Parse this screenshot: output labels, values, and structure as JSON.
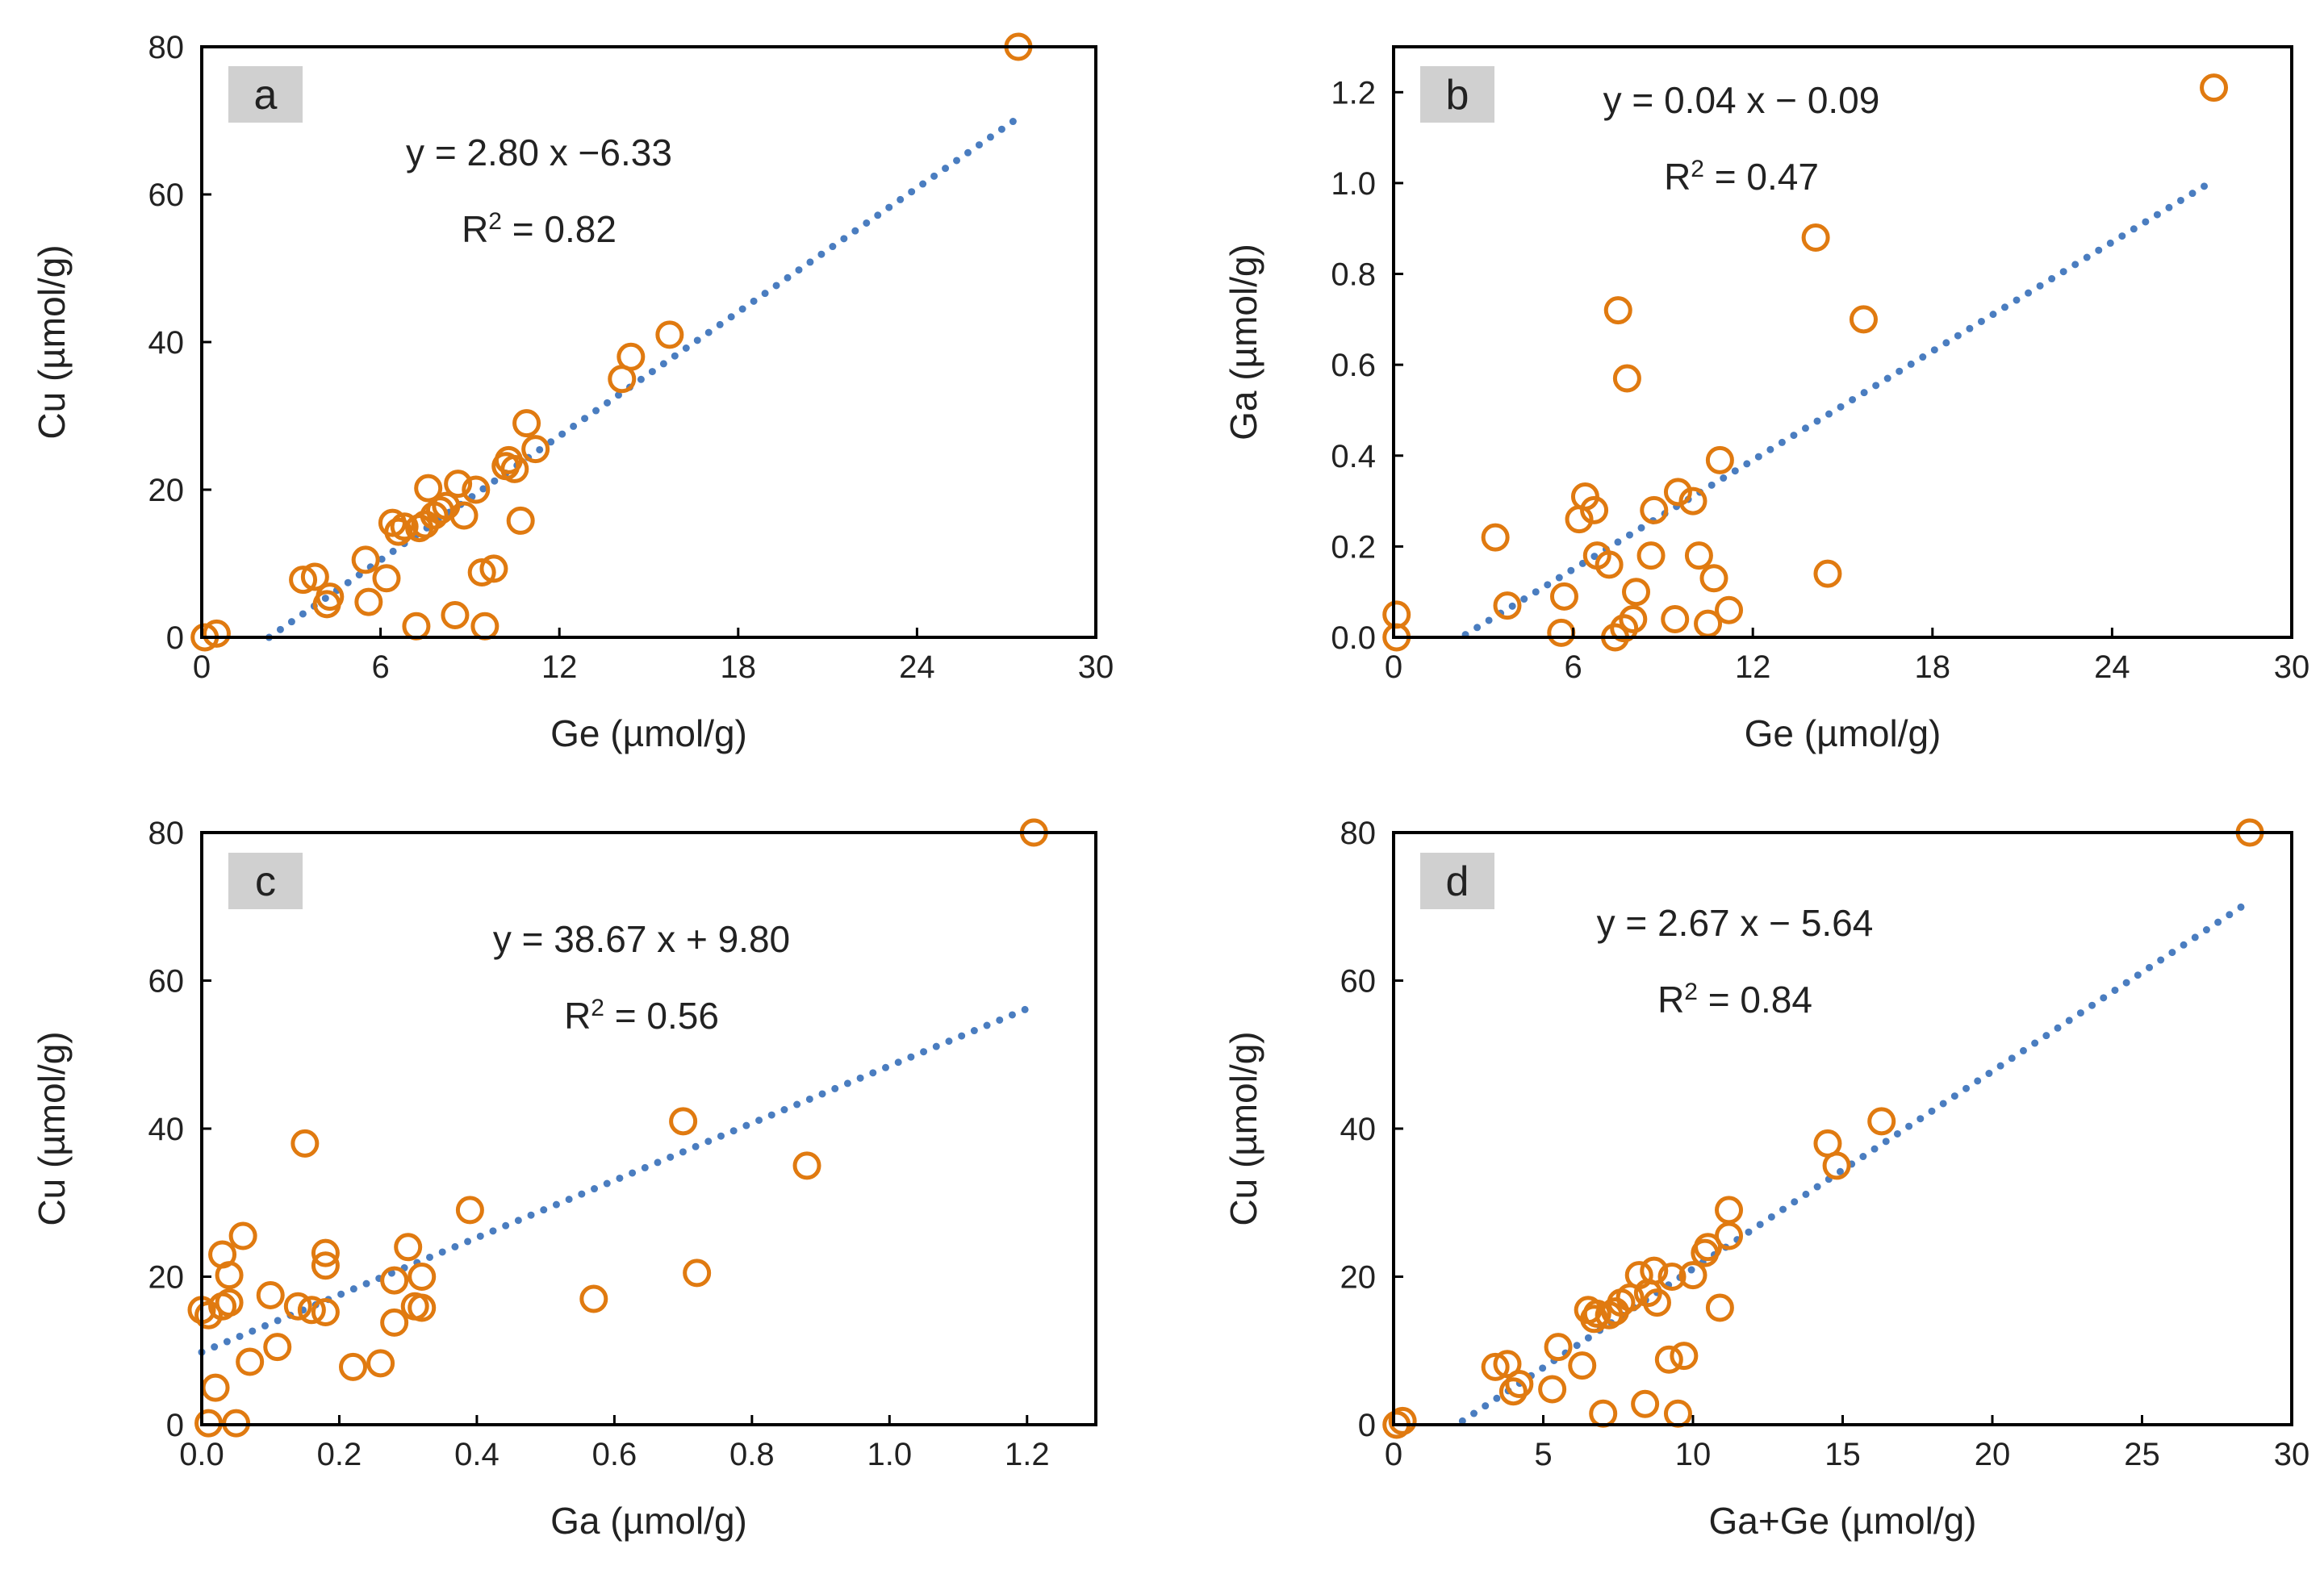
{
  "figure": {
    "colors": {
      "marker": "#E07A10",
      "trend": "#4A7DC0",
      "axis": "#000000",
      "label_box": "#D0D0D0"
    }
  },
  "chart_data": [
    {
      "type": "scatter",
      "panel_label": "a",
      "xlabel": "Ge (µmol/g)",
      "ylabel": "Cu (µmol/g)",
      "xlim": [
        0,
        30
      ],
      "ylim": [
        0,
        80
      ],
      "xticks": [
        0,
        6,
        12,
        18,
        24,
        30
      ],
      "xtick_labels": [
        "0",
        "6",
        "12",
        "18",
        "24",
        "30"
      ],
      "yticks": [
        0,
        20,
        40,
        60,
        80
      ],
      "ytick_labels": [
        "0",
        "20",
        "40",
        "60",
        "80"
      ],
      "equation": "y = 2.80 x −6.33",
      "r2_label": "R",
      "r2_value": " = 0.82",
      "trendline": {
        "slope": 2.8,
        "intercept": -6.33,
        "x_start": 2.26,
        "x_end": 27.4
      },
      "x": [
        0.1,
        0.5,
        3.4,
        3.8,
        4.2,
        4.3,
        5.5,
        5.6,
        6.2,
        6.4,
        6.6,
        6.8,
        7.2,
        7.3,
        7.5,
        7.6,
        7.8,
        8.0,
        8.2,
        8.5,
        8.6,
        8.8,
        9.2,
        9.4,
        9.5,
        9.8,
        10.2,
        10.3,
        10.5,
        10.7,
        10.9,
        11.2,
        14.1,
        14.4,
        15.7,
        27.4
      ],
      "y": [
        0,
        0.5,
        7.8,
        8.2,
        4.5,
        5.5,
        10.5,
        4.8,
        8.0,
        15.5,
        14.3,
        15.0,
        1.5,
        14.8,
        15.3,
        20.2,
        16.5,
        17.2,
        17.8,
        3.0,
        20.8,
        16.5,
        20.0,
        8.8,
        1.5,
        9.3,
        23.2,
        24.0,
        22.8,
        15.8,
        29.0,
        25.5,
        35.0,
        38.0,
        41.0,
        80.0
      ]
    },
    {
      "type": "scatter",
      "panel_label": "b",
      "xlabel": "Ge (µmol/g)",
      "ylabel": "Ga (µmol/g)",
      "xlim": [
        0,
        30
      ],
      "ylim": [
        0,
        1.3
      ],
      "xticks": [
        0,
        6,
        12,
        18,
        24,
        30
      ],
      "xtick_labels": [
        "0",
        "6",
        "12",
        "18",
        "24",
        "30"
      ],
      "yticks": [
        0,
        0.2,
        0.4,
        0.6,
        0.8,
        1.0,
        1.2
      ],
      "ytick_labels": [
        "0.0",
        "0.2",
        "0.4",
        "0.6",
        "0.8",
        "1.0",
        "1.2"
      ],
      "equation": "y = 0.04 x − 0.09",
      "r2_label": "R",
      "r2_value": " = 0.47",
      "trendline": {
        "slope": 0.04,
        "intercept": -0.09,
        "x_start": 2.4,
        "x_end": 27.2
      },
      "x": [
        0.1,
        0.1,
        3.4,
        3.8,
        5.6,
        5.7,
        6.2,
        6.4,
        6.7,
        6.8,
        7.2,
        7.4,
        7.5,
        7.7,
        7.8,
        8.0,
        8.1,
        8.6,
        8.7,
        9.4,
        9.5,
        10.0,
        10.2,
        10.5,
        10.7,
        10.9,
        11.2,
        14.1,
        14.5,
        15.7,
        27.4
      ],
      "y": [
        0.05,
        0.0,
        0.22,
        0.07,
        0.01,
        0.09,
        0.26,
        0.31,
        0.28,
        0.18,
        0.16,
        0.0,
        0.72,
        0.02,
        0.57,
        0.04,
        0.1,
        0.18,
        0.28,
        0.04,
        0.32,
        0.3,
        0.18,
        0.03,
        0.13,
        0.39,
        0.06,
        0.88,
        0.14,
        0.7,
        1.21
      ]
    },
    {
      "type": "scatter",
      "panel_label": "c",
      "xlabel": "Ga (µmol/g)",
      "ylabel": "Cu (µmol/g)",
      "xlim": [
        0,
        1.3
      ],
      "ylim": [
        0,
        80
      ],
      "xticks": [
        0,
        0.2,
        0.4,
        0.6,
        0.8,
        1.0,
        1.2
      ],
      "xtick_labels": [
        "0.0",
        "0.2",
        "0.4",
        "0.6",
        "0.8",
        "1.0",
        "1.2"
      ],
      "yticks": [
        0,
        20,
        40,
        60,
        80
      ],
      "ytick_labels": [
        "0",
        "20",
        "40",
        "60",
        "80"
      ],
      "equation": "y = 38.67 x + 9.80",
      "r2_label": "R",
      "r2_value": " = 0.56",
      "trendline": {
        "slope": 38.67,
        "intercept": 9.8,
        "x_start": 0.0,
        "x_end": 1.2
      },
      "x": [
        0.0,
        0.01,
        0.01,
        0.02,
        0.03,
        0.03,
        0.04,
        0.04,
        0.05,
        0.06,
        0.07,
        0.1,
        0.11,
        0.14,
        0.15,
        0.16,
        0.18,
        0.18,
        0.18,
        0.22,
        0.26,
        0.28,
        0.28,
        0.3,
        0.31,
        0.32,
        0.32,
        0.39,
        0.57,
        0.7,
        0.72,
        0.88,
        1.21
      ],
      "y": [
        15.5,
        0.2,
        14.8,
        5.0,
        23.0,
        16.0,
        20.2,
        16.5,
        0.2,
        25.5,
        8.5,
        17.5,
        10.5,
        16.0,
        38.0,
        15.5,
        15.2,
        21.5,
        23.2,
        7.8,
        8.3,
        13.8,
        19.5,
        24.0,
        16.0,
        20.0,
        15.8,
        29.0,
        17.0,
        41.0,
        20.5,
        35.0,
        80.0
      ]
    },
    {
      "type": "scatter",
      "panel_label": "d",
      "xlabel": "Ga+Ge (µmol/g)",
      "ylabel": "Cu (µmol/g)",
      "xlim": [
        0,
        30
      ],
      "ylim": [
        0,
        80
      ],
      "xticks": [
        0,
        5,
        10,
        15,
        20,
        25,
        30
      ],
      "xtick_labels": [
        "0",
        "5",
        "10",
        "15",
        "20",
        "25",
        "30"
      ],
      "yticks": [
        0,
        20,
        40,
        60,
        80
      ],
      "ytick_labels": [
        "0",
        "20",
        "40",
        "60",
        "80"
      ],
      "equation": "y = 2.67 x  − 5.64",
      "r2_label": "R",
      "r2_value": " = 0.84",
      "trendline": {
        "slope": 2.67,
        "intercept": -5.64,
        "x_start": 2.3,
        "x_end": 28.4
      },
      "x": [
        0.1,
        0.3,
        3.4,
        3.8,
        4.0,
        4.2,
        5.3,
        5.5,
        6.3,
        6.5,
        6.7,
        6.8,
        7.0,
        7.2,
        7.4,
        7.6,
        7.9,
        8.2,
        8.4,
        8.5,
        8.7,
        8.8,
        9.2,
        9.3,
        9.5,
        9.7,
        10.0,
        10.4,
        10.5,
        10.9,
        11.2,
        11.2,
        14.5,
        14.8,
        16.3,
        28.6
      ],
      "y": [
        0,
        0.5,
        7.8,
        8.2,
        4.5,
        5.5,
        4.8,
        10.5,
        8.0,
        15.5,
        14.3,
        15.0,
        1.5,
        14.8,
        15.3,
        16.5,
        17.2,
        20.2,
        2.8,
        17.8,
        20.8,
        16.5,
        8.8,
        20.0,
        1.5,
        9.3,
        20.2,
        23.2,
        24.0,
        15.8,
        29.0,
        25.5,
        38.0,
        35.0,
        41.0,
        80.0
      ]
    }
  ]
}
